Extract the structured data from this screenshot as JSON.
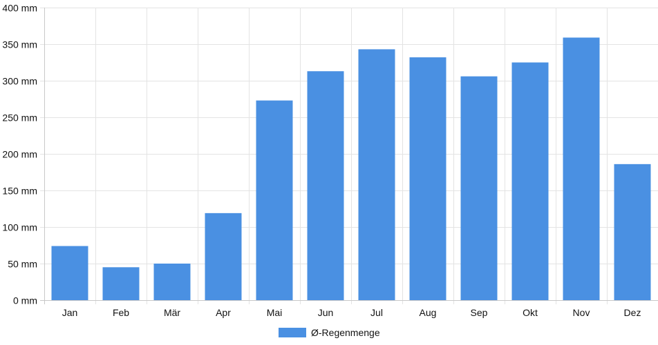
{
  "chart_data": {
    "type": "bar",
    "title": "",
    "xlabel": "",
    "ylabel": "",
    "categories": [
      "Jan",
      "Feb",
      "Mär",
      "Apr",
      "Mai",
      "Jun",
      "Jul",
      "Aug",
      "Sep",
      "Okt",
      "Nov",
      "Dez"
    ],
    "series": [
      {
        "name": "Ø-Regenmenge",
        "values": [
          74,
          45,
          50,
          119,
          273,
          313,
          343,
          332,
          306,
          325,
          359,
          186
        ],
        "color": "#4a90e2"
      }
    ],
    "ylim": [
      0,
      400
    ],
    "y_ticks": [
      0,
      50,
      100,
      150,
      200,
      250,
      300,
      350,
      400
    ],
    "y_tick_labels": [
      "0 mm",
      "50 mm",
      "100 mm",
      "150 mm",
      "200 mm",
      "250 mm",
      "300 mm",
      "350 mm",
      "400 mm"
    ],
    "grid": true,
    "legend_position": "bottom-center"
  }
}
